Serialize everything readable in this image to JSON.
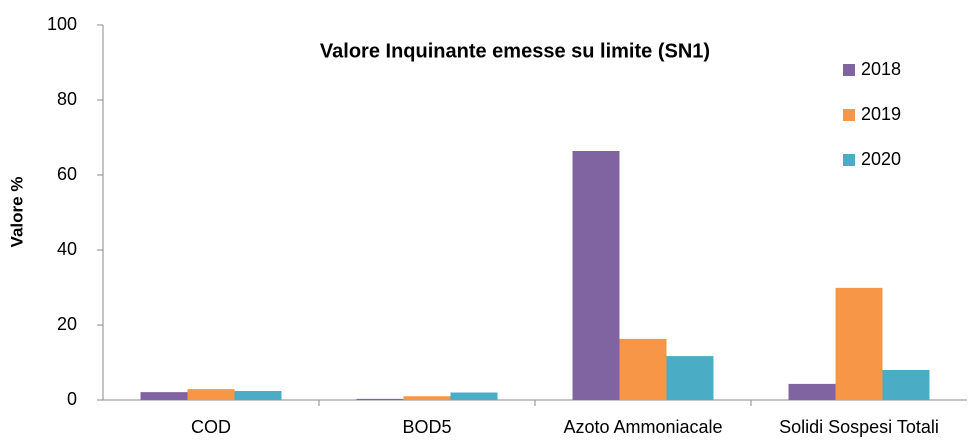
{
  "chart_data": {
    "type": "bar",
    "title": "Valore Inquinante emesse su limite (SN1)",
    "y_label": "Valore %",
    "categories": [
      "COD",
      "BOD5",
      "Azoto Ammoniacale",
      "Solidi Sospesi Totali"
    ],
    "series": [
      {
        "name": "2018",
        "color": "#8064a2",
        "values": [
          2.1,
          0.3,
          66.4,
          4.3
        ]
      },
      {
        "name": "2019",
        "color": "#f79646",
        "values": [
          2.9,
          1.0,
          16.3,
          29.9
        ]
      },
      {
        "name": "2020",
        "color": "#4bacc6",
        "values": [
          2.4,
          2.0,
          11.7,
          8.0
        ]
      }
    ],
    "ylim": [
      0,
      100
    ],
    "yticks": [
      0,
      20,
      40,
      60,
      80,
      100
    ],
    "grid": false,
    "legend": "upper right"
  }
}
